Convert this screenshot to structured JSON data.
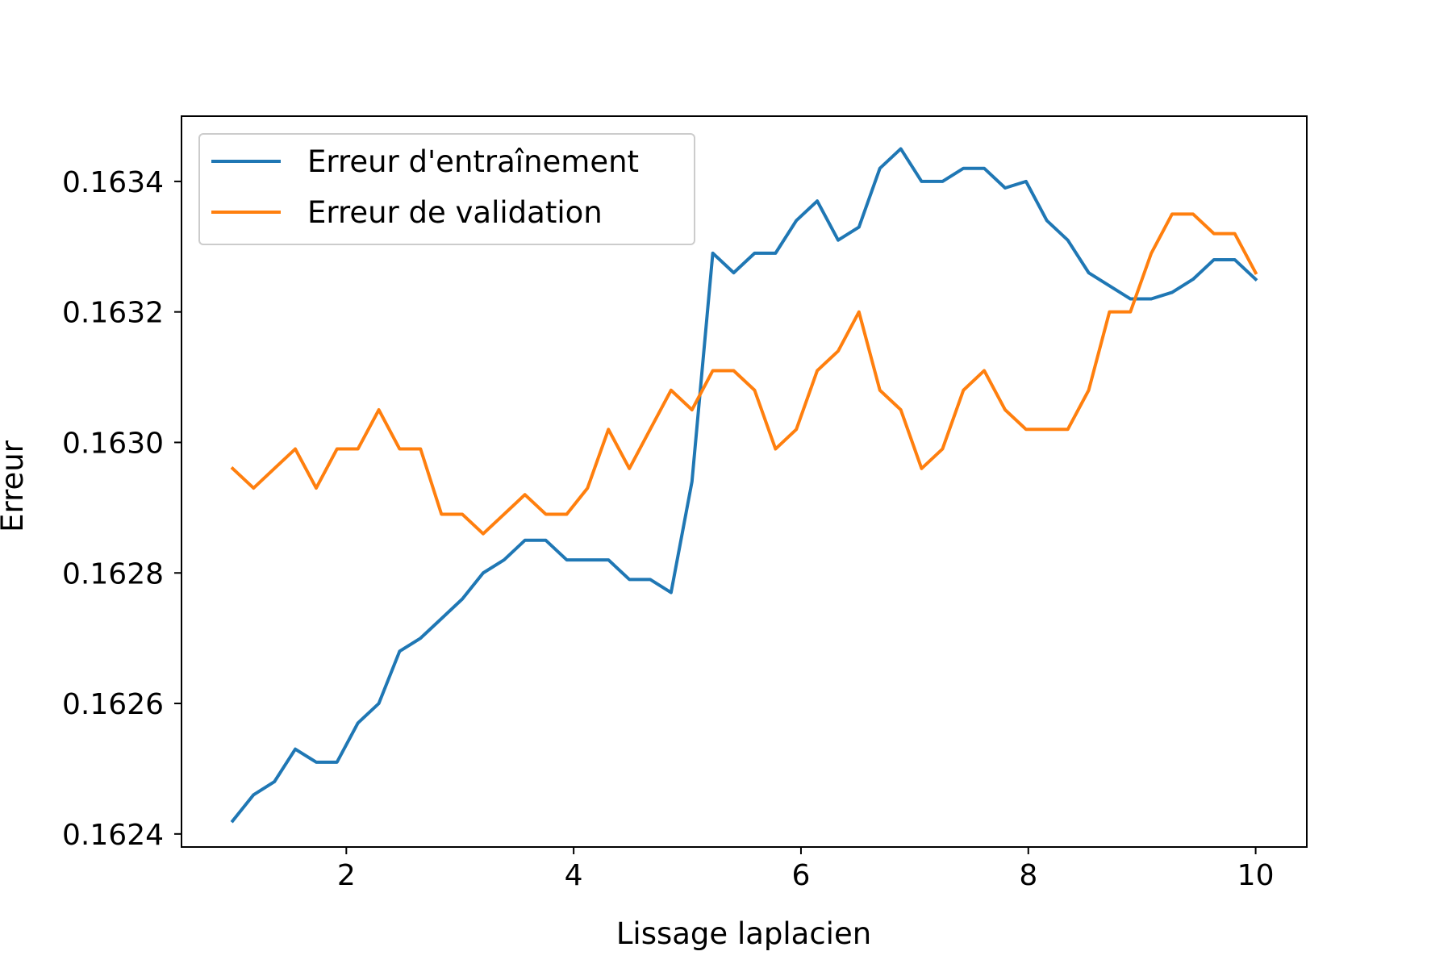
{
  "chart_data": {
    "type": "line",
    "title": "",
    "xlabel": "Lissage laplacien",
    "ylabel": "Erreur",
    "xlim": [
      0.55,
      10.45
    ],
    "ylim": [
      0.16238,
      0.1635
    ],
    "xticks": [
      2,
      4,
      6,
      8,
      10
    ],
    "xtick_labels": [
      "2",
      "4",
      "6",
      "8",
      "10"
    ],
    "yticks": [
      0.1624,
      0.1626,
      0.1628,
      0.163,
      0.1632,
      0.1634
    ],
    "ytick_labels": [
      "0.1624",
      "0.1626",
      "0.1628",
      "0.1630",
      "0.1632",
      "0.1634"
    ],
    "grid": false,
    "legend_position": "top-left",
    "x": [
      1.0,
      1.184,
      1.367,
      1.551,
      1.735,
      1.918,
      2.102,
      2.286,
      2.469,
      2.653,
      2.837,
      3.02,
      3.204,
      3.388,
      3.571,
      3.755,
      3.939,
      4.122,
      4.306,
      4.49,
      4.673,
      4.857,
      5.041,
      5.224,
      5.408,
      5.592,
      5.776,
      5.959,
      6.143,
      6.327,
      6.51,
      6.694,
      6.878,
      7.061,
      7.245,
      7.429,
      7.612,
      7.796,
      7.98,
      8.163,
      8.347,
      8.531,
      8.714,
      8.898,
      9.082,
      9.265,
      9.449,
      9.633,
      9.816,
      10.0
    ],
    "series": [
      {
        "name": "Erreur d'entraînement",
        "color": "#1f77b4",
        "values": [
          0.16242,
          0.16246,
          0.16248,
          0.16253,
          0.16251,
          0.16251,
          0.16257,
          0.1626,
          0.16268,
          0.1627,
          0.16273,
          0.16276,
          0.1628,
          0.16282,
          0.16285,
          0.16285,
          0.16282,
          0.16282,
          0.16282,
          0.16279,
          0.16279,
          0.16277,
          0.16294,
          0.16329,
          0.16326,
          0.16329,
          0.16329,
          0.16334,
          0.16337,
          0.16331,
          0.16333,
          0.16342,
          0.16345,
          0.1634,
          0.1634,
          0.16342,
          0.16342,
          0.16339,
          0.1634,
          0.16334,
          0.16331,
          0.16326,
          0.16324,
          0.16322,
          0.16322,
          0.16323,
          0.16325,
          0.16328,
          0.16328,
          0.16325
        ]
      },
      {
        "name": "Erreur de validation",
        "color": "#ff7f0e",
        "values": [
          0.16296,
          0.16293,
          0.16296,
          0.16299,
          0.16293,
          0.16299,
          0.16299,
          0.16305,
          0.16299,
          0.16299,
          0.16289,
          0.16289,
          0.16286,
          0.16289,
          0.16292,
          0.16289,
          0.16289,
          0.16293,
          0.16302,
          0.16296,
          0.16302,
          0.16308,
          0.16305,
          0.16311,
          0.16311,
          0.16308,
          0.16299,
          0.16302,
          0.16311,
          0.16314,
          0.1632,
          0.16308,
          0.16305,
          0.16296,
          0.16299,
          0.16308,
          0.16311,
          0.16305,
          0.16302,
          0.16302,
          0.16302,
          0.16308,
          0.1632,
          0.1632,
          0.16329,
          0.16335,
          0.16335,
          0.16332,
          0.16332,
          0.16326
        ]
      }
    ]
  }
}
